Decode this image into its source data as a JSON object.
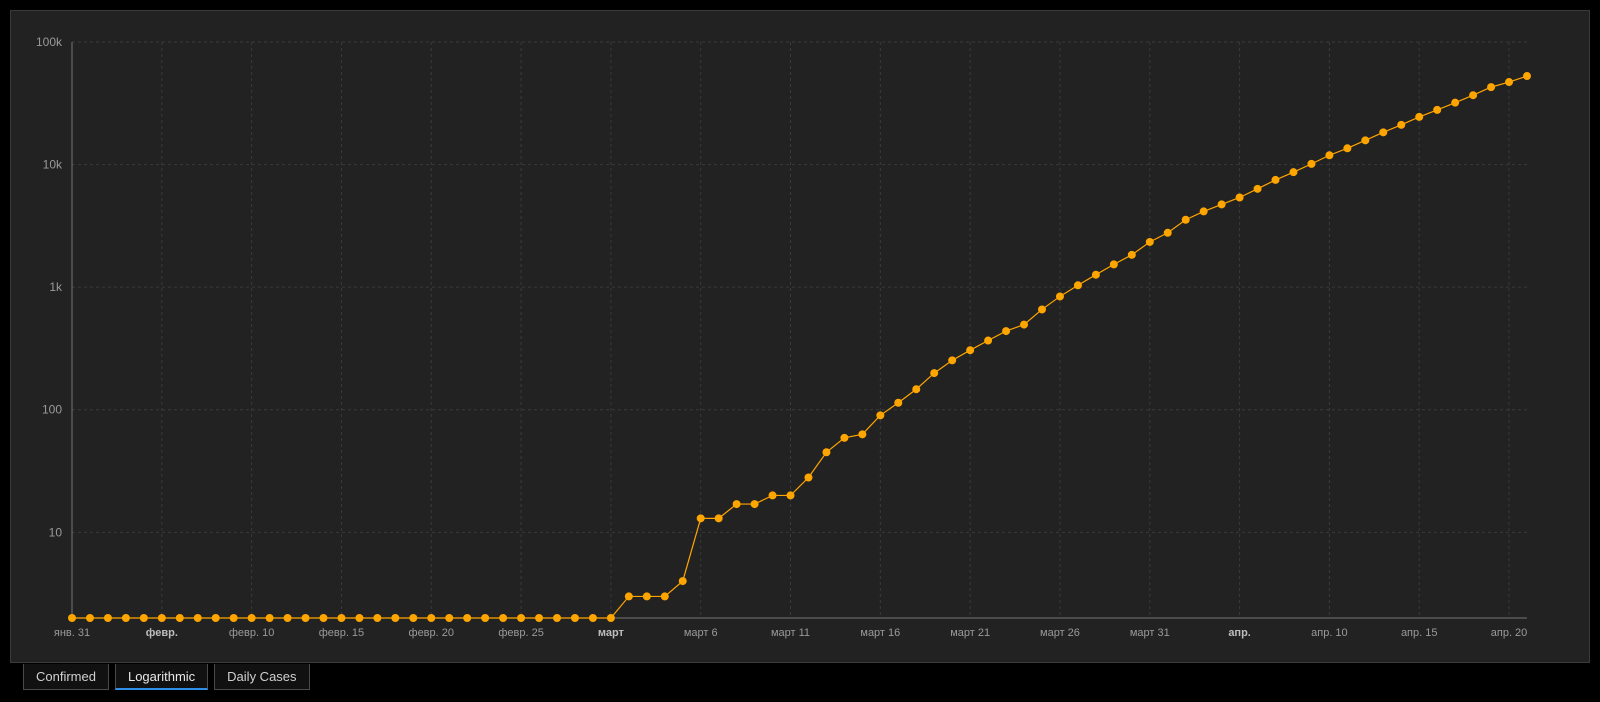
{
  "chart_data": {
    "type": "line",
    "scale": "log",
    "grid": true,
    "colors": {
      "series": "#ffa500",
      "background": "#222222",
      "grid": "#3a3a3a"
    },
    "y_ticks": [
      {
        "value": 10,
        "label": "10"
      },
      {
        "value": 100,
        "label": "100"
      },
      {
        "value": 1000,
        "label": "1k"
      },
      {
        "value": 10000,
        "label": "10k"
      },
      {
        "value": 100000,
        "label": "100k"
      }
    ],
    "ylim": [
      2,
      100000
    ],
    "x_ticks": [
      {
        "date": "2020-01-31",
        "label": "янв. 31",
        "bold": false
      },
      {
        "date": "2020-02-05",
        "label": "февр.",
        "bold": true
      },
      {
        "date": "2020-02-10",
        "label": "февр. 10",
        "bold": false
      },
      {
        "date": "2020-02-15",
        "label": "февр. 15",
        "bold": false
      },
      {
        "date": "2020-02-20",
        "label": "февр. 20",
        "bold": false
      },
      {
        "date": "2020-02-25",
        "label": "февр. 25",
        "bold": false
      },
      {
        "date": "2020-03-01",
        "label": "март",
        "bold": true
      },
      {
        "date": "2020-03-06",
        "label": "март 6",
        "bold": false
      },
      {
        "date": "2020-03-11",
        "label": "март 11",
        "bold": false
      },
      {
        "date": "2020-03-16",
        "label": "март 16",
        "bold": false
      },
      {
        "date": "2020-03-21",
        "label": "март 21",
        "bold": false
      },
      {
        "date": "2020-03-26",
        "label": "март 26",
        "bold": false
      },
      {
        "date": "2020-03-31",
        "label": "март 31",
        "bold": false
      },
      {
        "date": "2020-04-05",
        "label": "апр.",
        "bold": true
      },
      {
        "date": "2020-04-10",
        "label": "апр. 10",
        "bold": false
      },
      {
        "date": "2020-04-15",
        "label": "апр. 15",
        "bold": false
      },
      {
        "date": "2020-04-20",
        "label": "апр. 20",
        "bold": false
      }
    ],
    "xlim": [
      "2020-01-31",
      "2020-04-21"
    ],
    "series": [
      {
        "x": [
          "2020-01-31",
          "2020-02-01",
          "2020-02-02",
          "2020-02-03",
          "2020-02-04",
          "2020-02-05",
          "2020-02-06",
          "2020-02-07",
          "2020-02-08",
          "2020-02-09",
          "2020-02-10",
          "2020-02-11",
          "2020-02-12",
          "2020-02-13",
          "2020-02-14",
          "2020-02-15",
          "2020-02-16",
          "2020-02-17",
          "2020-02-18",
          "2020-02-19",
          "2020-02-20",
          "2020-02-21",
          "2020-02-22",
          "2020-02-23",
          "2020-02-24",
          "2020-02-25",
          "2020-02-26",
          "2020-02-27",
          "2020-02-28",
          "2020-02-29",
          "2020-03-01",
          "2020-03-02",
          "2020-03-03",
          "2020-03-04",
          "2020-03-05",
          "2020-03-06",
          "2020-03-07",
          "2020-03-08",
          "2020-03-09",
          "2020-03-10",
          "2020-03-11",
          "2020-03-12",
          "2020-03-13",
          "2020-03-14",
          "2020-03-15",
          "2020-03-16",
          "2020-03-17",
          "2020-03-18",
          "2020-03-19",
          "2020-03-20",
          "2020-03-21",
          "2020-03-22",
          "2020-03-23",
          "2020-03-24",
          "2020-03-25",
          "2020-03-26",
          "2020-03-27",
          "2020-03-28",
          "2020-03-29",
          "2020-03-30",
          "2020-03-31",
          "2020-04-01",
          "2020-04-02",
          "2020-04-03",
          "2020-04-04",
          "2020-04-05",
          "2020-04-06",
          "2020-04-07",
          "2020-04-08",
          "2020-04-09",
          "2020-04-10",
          "2020-04-11",
          "2020-04-12",
          "2020-04-13",
          "2020-04-14",
          "2020-04-15",
          "2020-04-16",
          "2020-04-17",
          "2020-04-18",
          "2020-04-19",
          "2020-04-20",
          "2020-04-21"
        ],
        "y": [
          2,
          2,
          2,
          2,
          2,
          2,
          2,
          2,
          2,
          2,
          2,
          2,
          2,
          2,
          2,
          2,
          2,
          2,
          2,
          2,
          2,
          2,
          2,
          2,
          2,
          2,
          2,
          2,
          2,
          2,
          2,
          3,
          3,
          3,
          4,
          13,
          13,
          17,
          17,
          20,
          20,
          28,
          45,
          59,
          63,
          90,
          114,
          147,
          199,
          253,
          306,
          367,
          438,
          495,
          658,
          840,
          1036,
          1264,
          1534,
          1836,
          2337,
          2777,
          3548,
          4149,
          4731,
          5389,
          6343,
          7497,
          8672,
          10131,
          11917,
          13584,
          15770,
          18328,
          21102,
          24490,
          27938,
          32008,
          36793,
          42853,
          47121,
          52763
        ]
      }
    ]
  },
  "tabs": [
    {
      "label": "Confirmed",
      "active": false
    },
    {
      "label": "Logarithmic",
      "active": true
    },
    {
      "label": "Daily Cases",
      "active": false
    }
  ]
}
